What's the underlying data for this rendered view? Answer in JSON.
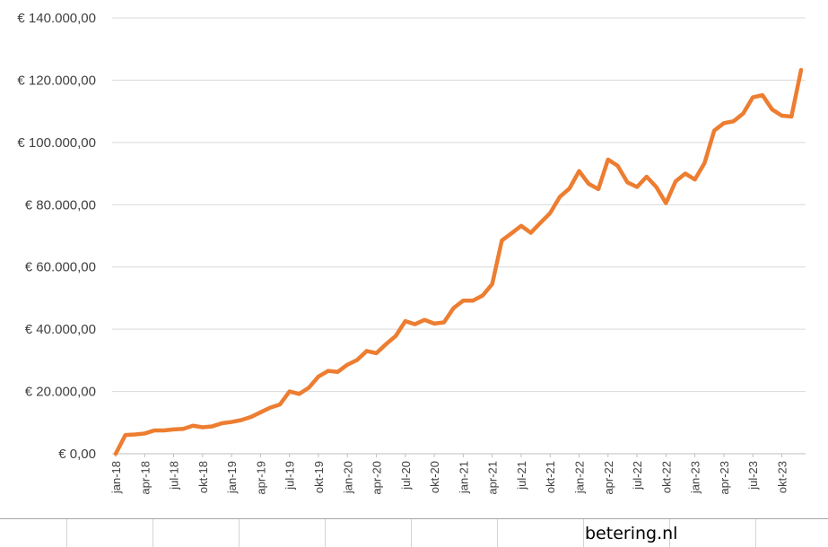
{
  "chart_data": {
    "type": "line",
    "title": "",
    "xlabel": "",
    "ylabel": "",
    "ylim": [
      0,
      140000
    ],
    "ytick_labels": [
      "€ 0,00",
      "€ 20.000,00",
      "€ 40.000,00",
      "€ 60.000,00",
      "€ 80.000,00",
      "€ 100.000,00",
      "€ 120.000,00",
      "€ 140.000,00"
    ],
    "ytick_values": [
      0,
      20000,
      40000,
      60000,
      80000,
      100000,
      120000,
      140000
    ],
    "x_tick_labels": [
      "jan-18",
      "apr-18",
      "jul-18",
      "okt-18",
      "jan-19",
      "apr-19",
      "jul-19",
      "okt-19",
      "jan-20",
      "apr-20",
      "jul-20",
      "okt-20",
      "jan-21",
      "apr-21",
      "jul-21",
      "okt-21",
      "jan-22",
      "apr-22",
      "jul-22",
      "okt-22",
      "jan-23",
      "apr-23",
      "jul-23",
      "okt-23"
    ],
    "grid": true,
    "legend": "none",
    "series_color": "#ed7d31",
    "series": [
      {
        "x": [
          "jan-18",
          "feb-18",
          "mrt-18",
          "apr-18",
          "mei-18",
          "jun-18",
          "jul-18",
          "aug-18",
          "sep-18",
          "okt-18",
          "nov-18",
          "dec-18",
          "jan-19",
          "feb-19",
          "mrt-19",
          "apr-19",
          "mei-19",
          "jun-19",
          "jul-19",
          "aug-19",
          "sep-19",
          "okt-19",
          "nov-19",
          "dec-19",
          "jan-20",
          "feb-20",
          "mrt-20",
          "apr-20",
          "mei-20",
          "jun-20",
          "jul-20",
          "aug-20",
          "sep-20",
          "okt-20",
          "nov-20",
          "dec-20",
          "jan-21",
          "feb-21",
          "mrt-21",
          "apr-21",
          "mei-21",
          "jun-21",
          "jul-21",
          "aug-21",
          "sep-21",
          "okt-21",
          "nov-21",
          "dec-21",
          "jan-22",
          "feb-22",
          "mrt-22",
          "apr-22",
          "mei-22",
          "jun-22",
          "jul-22",
          "aug-22",
          "sep-22",
          "okt-22",
          "nov-22",
          "dec-22",
          "jan-23",
          "feb-23",
          "mrt-23",
          "apr-23",
          "mei-23",
          "jun-23",
          "jul-23",
          "aug-23",
          "sep-23",
          "okt-23",
          "nov-23",
          "dec-23"
        ],
        "values": [
          0,
          6000,
          6200,
          6500,
          7500,
          7500,
          7800,
          8000,
          9000,
          8500,
          8800,
          9800,
          10200,
          10800,
          11800,
          13300,
          14800,
          15800,
          20000,
          19200,
          21200,
          24800,
          26600,
          26300,
          28600,
          30100,
          33000,
          32300,
          35200,
          37800,
          42600,
          41600,
          43000,
          41800,
          42200,
          46800,
          49200,
          49200,
          50800,
          54500,
          68500,
          70800,
          73200,
          71000,
          74200,
          77300,
          82500,
          85200,
          90800,
          86700,
          85000,
          94500,
          92500,
          87200,
          85700,
          89000,
          85700,
          80500,
          87500,
          90000,
          88100,
          93400,
          103800,
          106200,
          106800,
          109300,
          114500,
          115200,
          110600,
          108600,
          108300,
          123300
        ]
      }
    ]
  },
  "footer": {
    "watermark": "betering.nl"
  }
}
